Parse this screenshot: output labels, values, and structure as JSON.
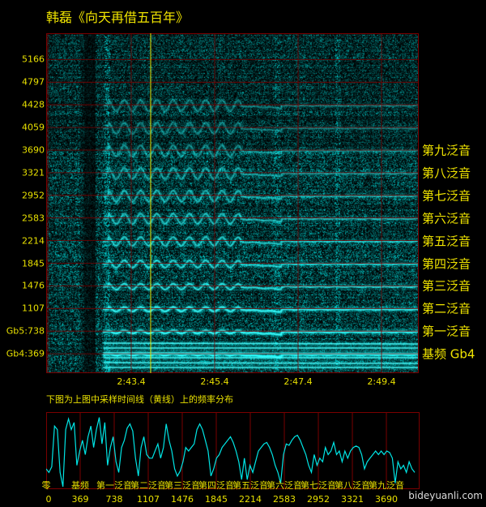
{
  "title": "韩磊《向天再借五百年》",
  "spectrogram": {
    "y_labels": [
      "5166",
      "4797",
      "4428",
      "4059",
      "3690",
      "3321",
      "2952",
      "2583",
      "2214",
      "1845",
      "1476",
      "1107",
      "Gb5:738",
      "Gb4:369"
    ],
    "y_values": [
      5166,
      4797,
      4428,
      4059,
      3690,
      3321,
      2952,
      2583,
      2214,
      1845,
      1476,
      1107,
      738,
      369
    ],
    "time_labels": [
      "2:43.4",
      "2:45.4",
      "2:47.4",
      "2:49.4"
    ],
    "harmonic_labels": [
      "第九泛音",
      "第八泛音",
      "第七泛音",
      "第六泛音",
      "第五泛音",
      "第四泛音",
      "第三泛音",
      "第二泛音",
      "第一泛音",
      "基频 Gb4"
    ],
    "sample_line_color": "#e8e000",
    "spectrum_color": "#00e5e5",
    "grid_color": "#7a0000"
  },
  "caption": "下图为上图中采样时间线（黄线）上的频率分布",
  "chart_data": {
    "type": "line",
    "title": "",
    "xlabel": "",
    "ylabel": "",
    "x_range_hz": [
      0,
      4050
    ],
    "tick_values": [
      0,
      369,
      738,
      1107,
      1476,
      1845,
      2214,
      2583,
      2952,
      3321,
      3690
    ],
    "tick_labels": [
      "0",
      "369",
      "738",
      "1107",
      "1476",
      "1845",
      "2214",
      "2583",
      "2952",
      "3321",
      "3690"
    ],
    "tick_names": [
      "零",
      "基频",
      "第一泛音",
      "第二泛音",
      "第三泛音",
      "第四泛音",
      "第五泛音",
      "第六泛音",
      "第七泛音",
      "第八泛音",
      "第九泛音"
    ],
    "grid": true,
    "line_color": "#00e5e5",
    "relative_amplitude": [
      0.25,
      0.2,
      0.28,
      0.85,
      0.8,
      0.2,
      0.0,
      0.8,
      0.95,
      0.8,
      0.9,
      0.3,
      0.5,
      0.65,
      0.45,
      0.7,
      0.85,
      0.55,
      0.8,
      0.97,
      0.6,
      0.9,
      0.3,
      0.55,
      0.7,
      0.35,
      0.2,
      0.55,
      0.65,
      0.82,
      0.88,
      0.78,
      0.4,
      0.15,
      0.55,
      0.7,
      0.45,
      0.4,
      0.4,
      0.5,
      0.6,
      0.4,
      0.55,
      0.88,
      0.65,
      0.5,
      0.25,
      0.15,
      0.22,
      0.35,
      0.55,
      0.5,
      0.55,
      0.6,
      0.8,
      0.88,
      0.8,
      0.65,
      0.5,
      0.15,
      0.25,
      0.4,
      0.45,
      0.55,
      0.6,
      0.65,
      0.7,
      0.62,
      0.5,
      0.35,
      0.1,
      0.4,
      0.1,
      0.3,
      0.2,
      0.35,
      0.5,
      0.55,
      0.6,
      0.62,
      0.55,
      0.45,
      0.3,
      0.2,
      0.05,
      0.45,
      0.6,
      0.58,
      0.65,
      0.7,
      0.72,
      0.65,
      0.55,
      0.45,
      0.3,
      0.2,
      0.45,
      0.3,
      0.4,
      0.35,
      0.55,
      0.45,
      0.5,
      0.62,
      0.45,
      0.5,
      0.35,
      0.5,
      0.4,
      0.5,
      0.55,
      0.57,
      0.55,
      0.45,
      0.25,
      0.35,
      0.4,
      0.45,
      0.5,
      0.45,
      0.5,
      0.45,
      0.5,
      0.48,
      0.4,
      0.05,
      0.35,
      0.25,
      0.3,
      0.2,
      0.35,
      0.25,
      0.2
    ]
  },
  "watermark": "bideyuanli.com"
}
